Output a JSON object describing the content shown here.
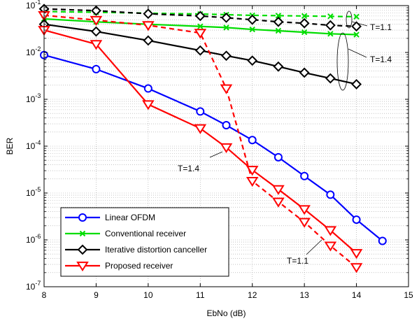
{
  "chart_data": {
    "type": "line",
    "title": "",
    "xlabel": "EbNo (dB)",
    "ylabel": "BER",
    "xlim": [
      8,
      15
    ],
    "ylim_log10": [
      -7,
      -1
    ],
    "yscale": "log",
    "grid": true,
    "legend_position": "bottom-left",
    "x_ticks": [
      "8",
      "9",
      "10",
      "11",
      "12",
      "13",
      "14",
      "15"
    ],
    "y_ticks": [
      {
        "base": "10",
        "exp": "-1"
      },
      {
        "base": "10",
        "exp": "-2"
      },
      {
        "base": "10",
        "exp": "-3"
      },
      {
        "base": "10",
        "exp": "-4"
      },
      {
        "base": "10",
        "exp": "-5"
      },
      {
        "base": "10",
        "exp": "-6"
      },
      {
        "base": "10",
        "exp": "-7"
      }
    ],
    "series": [
      {
        "name": "Linear OFDM",
        "color": "#0000ff",
        "marker": "circle",
        "dash": "solid",
        "x": [
          8,
          9,
          10,
          11,
          11.5,
          12,
          12.5,
          13,
          13.5,
          14,
          14.5
        ],
        "y": [
          0.0088,
          0.0044,
          0.0017,
          0.00055,
          0.00028,
          0.000135,
          5.8e-05,
          2.3e-05,
          9.2e-06,
          2.7e-06,
          9.5e-07
        ]
      },
      {
        "name": "Conventional receiver",
        "color": "#00dd00",
        "marker": "x",
        "dash": "solid",
        "x": [
          8,
          9,
          10,
          11,
          11.5,
          12,
          12.5,
          13,
          13.5,
          14
        ],
        "y": [
          0.052,
          0.045,
          0.04,
          0.036,
          0.034,
          0.031,
          0.029,
          0.027,
          0.025,
          0.024
        ]
      },
      {
        "name": "",
        "color": "#00dd00",
        "marker": "x",
        "dash": "dashed",
        "x": [
          8,
          9,
          10,
          11,
          11.5,
          12,
          12.5,
          13,
          13.5,
          14
        ],
        "y": [
          0.075,
          0.072,
          0.069,
          0.066,
          0.064,
          0.062,
          0.061,
          0.06,
          0.059,
          0.058
        ]
      },
      {
        "name": "Iterative distortion canceller",
        "color": "#000000",
        "marker": "diamond",
        "dash": "solid",
        "x": [
          8,
          9,
          10,
          11,
          11.5,
          12,
          12.5,
          13,
          13.5,
          14
        ],
        "y": [
          0.04,
          0.028,
          0.018,
          0.011,
          0.0085,
          0.0067,
          0.005,
          0.0037,
          0.0028,
          0.0021
        ]
      },
      {
        "name": "",
        "color": "#000000",
        "marker": "diamond",
        "dash": "dashed",
        "x": [
          8,
          9,
          10,
          11,
          11.5,
          12,
          12.5,
          13,
          13.5,
          14
        ],
        "y": [
          0.085,
          0.078,
          0.067,
          0.06,
          0.055,
          0.05,
          0.045,
          0.042,
          0.038,
          0.036
        ]
      },
      {
        "name": "Proposed receiver",
        "color": "#ff0000",
        "marker": "triangle-down",
        "dash": "solid",
        "x": [
          8,
          9,
          10,
          11,
          11.5,
          12,
          12.5,
          13,
          13.5,
          14
        ],
        "y": [
          0.03,
          0.015,
          0.00078,
          0.00024,
          9.4e-05,
          3.1e-05,
          1.2e-05,
          4.5e-06,
          1.6e-06,
          5.2e-07
        ]
      },
      {
        "name": "",
        "color": "#ff0000",
        "marker": "triangle-down",
        "dash": "dashed",
        "x": [
          8,
          9,
          10,
          11,
          11.5,
          12,
          12.5,
          13,
          13.5,
          14
        ],
        "y": [
          0.062,
          0.049,
          0.038,
          0.026,
          0.0017,
          1.8e-05,
          6.5e-06,
          2.4e-06,
          7.5e-07,
          2.6e-07
        ]
      }
    ],
    "annotations": {
      "t11_top": "T=1.1",
      "t14_right": "T=1.4",
      "t14_mid": "T=1.4",
      "t11_bottom": "T=1.1"
    }
  }
}
